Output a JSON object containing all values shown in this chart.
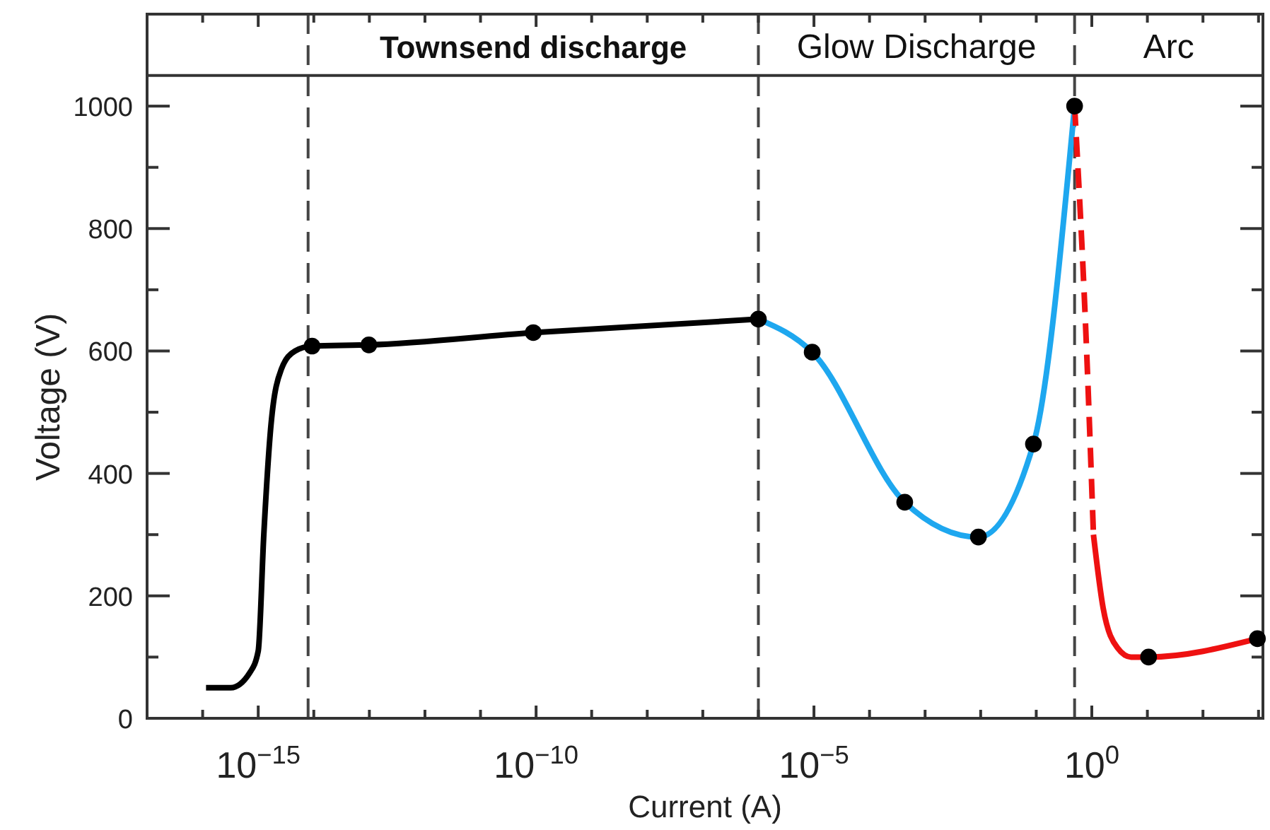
{
  "chart_data": {
    "type": "line",
    "xlabel": "Current  (A)",
    "ylabel": "Voltage  (V)",
    "log": "x",
    "xlim": [
      1e-17,
      1200
    ],
    "ylim": [
      0,
      1050
    ],
    "xticks": [
      {
        "value": 1e-16,
        "label": null
      },
      {
        "value": 1e-15,
        "label": "10$^{−15}$"
      },
      {
        "value": 1e-14,
        "label": null
      },
      {
        "value": 1e-13,
        "label": null
      },
      {
        "value": 1e-12,
        "label": null
      },
      {
        "value": 1e-11,
        "label": null
      },
      {
        "value": 1e-10,
        "label": "10$^{−10}$"
      },
      {
        "value": 1e-09,
        "label": null
      },
      {
        "value": 1e-08,
        "label": null
      },
      {
        "value": 1e-07,
        "label": null
      },
      {
        "value": 1e-06,
        "label": null
      },
      {
        "value": 1e-05,
        "label": "10$^{−5}$"
      },
      {
        "value": 0.0001,
        "label": null
      },
      {
        "value": 0.001,
        "label": null
      },
      {
        "value": 0.01,
        "label": null
      },
      {
        "value": 0.1,
        "label": null
      },
      {
        "value": 1,
        "label": "10$^{0}$"
      },
      {
        "value": 10,
        "label": null
      },
      {
        "value": 100,
        "label": null
      },
      {
        "value": 1000,
        "label": null
      }
    ],
    "yticks": [
      0,
      {
        "value": 100,
        "label": null
      },
      200,
      {
        "value": 300,
        "label": null
      },
      400,
      {
        "value": 500,
        "label": null
      },
      600,
      {
        "value": 700,
        "label": null
      },
      800,
      {
        "value": 900,
        "label": null
      },
      1000
    ],
    "grid": false,
    "marker": "none",
    "line_style": "solid",
    "series": [
      {
        "color": "#000000",
        "x": [
          1.15e-16,
          3.2e-16,
          7.1e-16,
          1e-15,
          1.26e-15,
          1.7e-15,
          2.6e-15,
          4.6e-15,
          9.3e-15,
          9.8e-14,
          8.9e-11,
          1e-06
        ],
        "values": [
          50,
          50,
          75,
          110,
          300,
          480,
          570,
          600,
          608,
          610,
          630,
          652
        ]
      },
      {
        "color": "#1ea7ef",
        "x": [
          1e-06,
          9.3e-06,
          0.00043,
          0.0091,
          0.089,
          0.49
        ],
        "values": [
          652,
          598,
          353,
          296,
          448,
          1000
        ]
      },
      {
        "color": "#ee1111",
        "line_style": "dashed",
        "x": [
          0.49,
          0.79,
          1.07
        ],
        "values": [
          1000,
          620,
          300
        ]
      },
      {
        "color": "#ee1111",
        "x": [
          1.07,
          1.6,
          2.9,
          5.1,
          10.5,
          955
        ],
        "values": [
          300,
          180,
          115,
          100,
          100,
          130
        ]
      },
      {
        "type": "scatter",
        "color": "#000000",
        "marker": "circle",
        "x": [
          9.3e-15,
          9.8e-14,
          8.9e-11,
          1e-06,
          9.3e-06,
          0.00043,
          0.0091,
          0.089,
          0.49,
          10.5,
          955
        ],
        "values": [
          608,
          610,
          630,
          652,
          598,
          353,
          296,
          448,
          1000,
          100,
          130
        ]
      }
    ],
    "ref_lines": [
      {
        "axis": "x",
        "value": 7.9e-15,
        "color": "#444444",
        "line_style": "dashed"
      },
      {
        "axis": "x",
        "value": 1e-06,
        "color": "#444444",
        "line_style": "dashed"
      },
      {
        "axis": "x",
        "value": 0.49,
        "color": "#444444",
        "line_style": "dashed"
      }
    ],
    "annotations": [
      "Townsend discharge",
      "Glow Discharge",
      "Arc"
    ]
  }
}
